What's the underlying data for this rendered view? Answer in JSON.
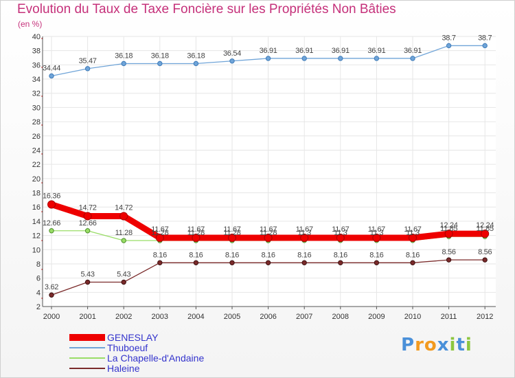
{
  "chart_data": {
    "type": "line",
    "title": "Evolution du Taux de Taxe Foncière sur les Propriétés Non Bâties",
    "ylabel": "(en %)",
    "xlabel": "",
    "ylim": [
      2,
      40
    ],
    "yticks": [
      2,
      4,
      6,
      8,
      10,
      12,
      14,
      16,
      18,
      20,
      22,
      24,
      26,
      28,
      30,
      32,
      34,
      36,
      38,
      40
    ],
    "categories": [
      "2000",
      "2001",
      "2002",
      "2003",
      "2004",
      "2005",
      "2006",
      "2007",
      "2008",
      "2009",
      "2010",
      "2011",
      "2012"
    ],
    "series": [
      {
        "name": "Thuboeuf",
        "color": "#6fa4d8",
        "values": [
          34.44,
          35.47,
          36.18,
          36.18,
          36.18,
          36.54,
          36.91,
          36.91,
          36.91,
          36.91,
          36.91,
          38.7,
          38.7
        ],
        "labels": [
          "34.44",
          "35.47",
          "36.18",
          "36.18",
          "36.18",
          "36.54",
          "36.91",
          "36.91",
          "36.91",
          "36.91",
          "36.91",
          "38.7",
          "38.7"
        ]
      },
      {
        "name": "La Chapelle-d'Andaine",
        "color": "#99dd66",
        "values": [
          12.66,
          12.66,
          11.28,
          11.28,
          11.28,
          11.28,
          11.28,
          11.3,
          11.3,
          11.3,
          11.3,
          11.85,
          11.85
        ],
        "labels": [
          "12.66",
          "12.66",
          "11.28",
          "11.28",
          "11.28",
          "11.28",
          "11.28",
          "11.3",
          "11.3",
          "11.3",
          "11.3",
          "11.85",
          "11.85"
        ]
      },
      {
        "name": "GENESLAY",
        "color": "#ee0000",
        "values": [
          16.36,
          14.72,
          14.72,
          11.67,
          11.67,
          11.67,
          11.67,
          11.67,
          11.67,
          11.67,
          11.67,
          12.24,
          12.24
        ],
        "labels": [
          "16.36",
          "14.72",
          "14.72",
          "11.67",
          "11.67",
          "11.67",
          "11.67",
          "11.67",
          "11.67",
          "11.67",
          "11.67",
          "12.24",
          "12.24"
        ]
      },
      {
        "name": "Haleine",
        "color": "#7a2a2a",
        "values": [
          3.62,
          5.43,
          5.43,
          8.16,
          8.16,
          8.16,
          8.16,
          8.16,
          8.16,
          8.16,
          8.16,
          8.56,
          8.56
        ],
        "labels": [
          "3.62",
          "5.43",
          "5.43",
          "8.16",
          "8.16",
          "8.16",
          "8.16",
          "8.16",
          "8.16",
          "8.16",
          "8.16",
          "8.56",
          "8.56"
        ]
      }
    ]
  },
  "legend": {
    "items": [
      {
        "label": "GENESLAY",
        "color": "#ee0000",
        "style": "thick"
      },
      {
        "label": "Thuboeuf",
        "color": "#6fa4d8",
        "style": "thin"
      },
      {
        "label": "La Chapelle-d'Andaine",
        "color": "#99dd66",
        "style": "thin"
      },
      {
        "label": "Haleine",
        "color": "#7a2a2a",
        "style": "thin"
      }
    ]
  },
  "logo": {
    "letters": [
      "P",
      "r",
      "o",
      "x",
      "i",
      "t",
      "i"
    ],
    "colors": [
      "#4a90d9",
      "#f29a1f",
      "#f29a1f",
      "#4a90d9",
      "#8cc63f",
      "#4a90d9",
      "#8cc63f"
    ]
  }
}
